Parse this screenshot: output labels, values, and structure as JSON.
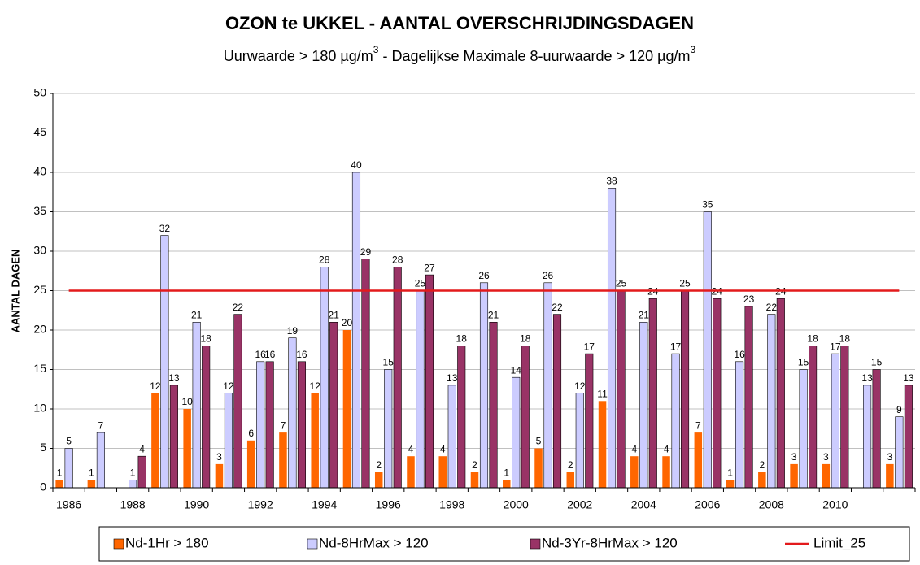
{
  "chart_data": {
    "type": "bar",
    "title": "OZON te UKKEL - AANTAL OVERSCHRIJDINGSDAGEN",
    "subtitle": [
      "Uurwaarde > 180 µg/m",
      "3",
      "   -   Dagelijkse Maximale 8-uurwaarde > 120 µg/m",
      "3"
    ],
    "y_label": "AANTAL DAGEN",
    "categories": [
      "1986",
      null,
      "1988",
      null,
      "1990",
      null,
      "1992",
      null,
      "1994",
      null,
      "1996",
      null,
      "1998",
      null,
      "2000",
      null,
      "2002",
      null,
      "2004",
      null,
      "2006",
      null,
      "2008",
      null,
      "2010",
      null,
      null
    ],
    "series": [
      {
        "name": "Nd-1Hr > 180",
        "color": "#ff6600",
        "values": [
          1,
          1,
          null,
          12,
          10,
          3,
          6,
          7,
          12,
          20,
          2,
          4,
          4,
          2,
          1,
          5,
          2,
          11,
          4,
          4,
          7,
          1,
          2,
          3,
          3,
          null,
          3
        ]
      },
      {
        "name": "Nd-8HrMax > 120",
        "color": "#ccccff",
        "values": [
          5,
          7,
          1,
          32,
          21,
          12,
          16,
          19,
          28,
          40,
          15,
          25,
          13,
          26,
          14,
          26,
          12,
          38,
          21,
          17,
          35,
          16,
          22,
          15,
          17,
          13,
          9
        ]
      },
      {
        "name": "Nd-3Yr-8HrMax > 120",
        "color": "#993366",
        "values": [
          null,
          null,
          4,
          13,
          18,
          22,
          16,
          16,
          21,
          29,
          28,
          27,
          18,
          21,
          18,
          22,
          17,
          25,
          24,
          25,
          24,
          23,
          24,
          18,
          18,
          15,
          13
        ]
      },
      {
        "name": "Limit_25",
        "color": "#e31a1c",
        "type": "line",
        "values": [
          25,
          25,
          25,
          25,
          25,
          25,
          25,
          25,
          25,
          25,
          25,
          25,
          25,
          25,
          25,
          25,
          25,
          25,
          25,
          25,
          25,
          25,
          25,
          25,
          25,
          25,
          25
        ]
      }
    ],
    "ylim": [
      0,
      50
    ],
    "yticks": [
      0,
      5,
      10,
      15,
      20,
      25,
      30,
      35,
      40,
      45,
      50
    ],
    "grid": true,
    "legend": "bottom"
  }
}
